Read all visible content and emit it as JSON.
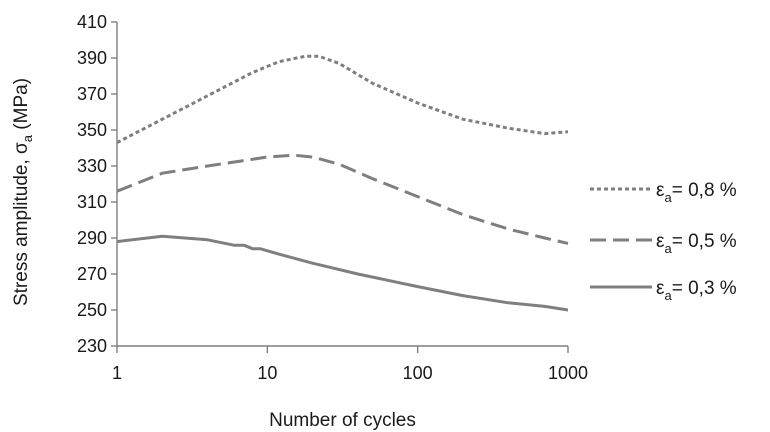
{
  "chart_data": {
    "type": "line",
    "xlabel": "Number of cycles",
    "ylabel": "Stress amplitude, σa (MPa)",
    "ylabel_main": "Stress amplitude, σ",
    "ylabel_sub": "a",
    "ylabel_tail": " (MPa)",
    "xscale": "log",
    "xlim": [
      1,
      1000
    ],
    "ylim": [
      230,
      410
    ],
    "x_ticks": [
      1,
      10,
      100,
      1000
    ],
    "x_tick_labels": [
      "1",
      "10",
      "100",
      "1000"
    ],
    "y_ticks": [
      230,
      250,
      270,
      290,
      310,
      330,
      350,
      370,
      390,
      410
    ],
    "y_tick_labels": [
      "230",
      "250",
      "270",
      "290",
      "310",
      "330",
      "350",
      "370",
      "390",
      "410"
    ],
    "grid": false,
    "legend_position": "right",
    "series": [
      {
        "name": "εa= 0,8 %",
        "name_prefix": "ε",
        "name_sub": "a",
        "name_suffix": "= 0,8 %",
        "color": "#7f7f7f",
        "dash": "short-dash",
        "x": [
          1,
          2,
          4,
          8,
          12,
          18,
          22,
          30,
          50,
          100,
          200,
          400,
          700,
          1000
        ],
        "y": [
          343,
          356,
          369,
          382,
          388,
          391,
          391,
          387,
          376,
          365,
          356,
          351,
          348,
          349
        ]
      },
      {
        "name": "εa= 0,5 %",
        "name_prefix": "ε",
        "name_sub": "a",
        "name_suffix": "= 0,5 %",
        "color": "#7f7f7f",
        "dash": "long-dash",
        "x": [
          1,
          2,
          4,
          7,
          10,
          15,
          20,
          30,
          50,
          100,
          200,
          400,
          700,
          1000
        ],
        "y": [
          316,
          326,
          330,
          333,
          335,
          336,
          335,
          331,
          323,
          313,
          303,
          295,
          290,
          287
        ]
      },
      {
        "name": "εa= 0,3 %",
        "name_prefix": "ε",
        "name_sub": "a",
        "name_suffix": "= 0,3 %",
        "color": "#7f7f7f",
        "dash": "solid",
        "x": [
          1,
          2,
          4,
          6,
          7,
          8,
          9,
          12,
          20,
          40,
          100,
          200,
          400,
          700,
          1000
        ],
        "y": [
          288,
          291,
          289,
          286,
          286,
          284,
          284,
          281,
          276,
          270,
          263,
          258,
          254,
          252,
          250
        ]
      }
    ]
  }
}
